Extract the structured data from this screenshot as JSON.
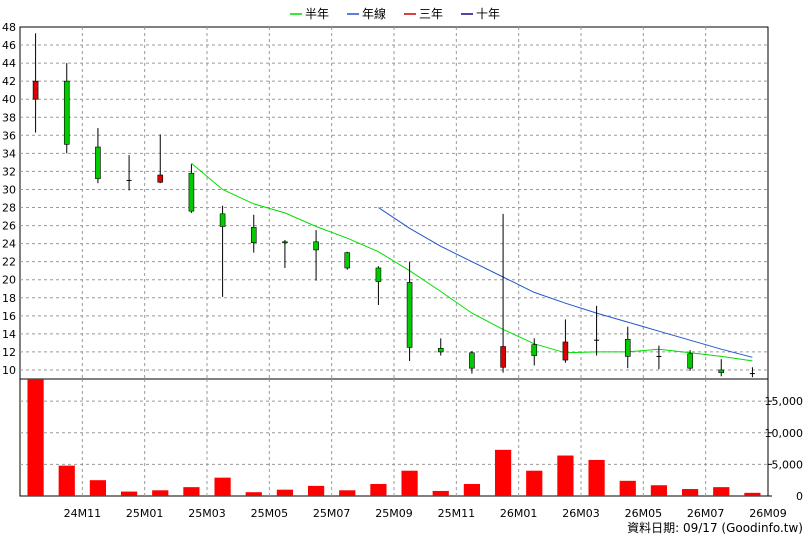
{
  "legend": [
    {
      "label": "半年",
      "color": "#00dd00"
    },
    {
      "label": "年線",
      "color": "#2255cc"
    },
    {
      "label": "三年",
      "color": "#cc0000"
    },
    {
      "label": "十年",
      "color": "#220088"
    }
  ],
  "source_label": "資料日期: 09/17 (Goodinfo.tw)",
  "colors": {
    "up_candle": "#dd0000",
    "down_candle": "#00cc00",
    "volume_bar": "#ff0000",
    "grid": "#9a9a9a"
  },
  "chart_data": [
    {
      "type": "candlestick",
      "title": "",
      "ylim": [
        9,
        48
      ],
      "yticks": [
        10,
        12,
        14,
        16,
        18,
        20,
        22,
        24,
        26,
        28,
        30,
        32,
        34,
        36,
        38,
        40,
        42,
        44,
        46,
        48
      ],
      "xtick_labels": [
        {
          "index": 1,
          "label": "24M11"
        },
        {
          "index": 3,
          "label": "25M01"
        },
        {
          "index": 5,
          "label": "25M03"
        },
        {
          "index": 7,
          "label": "25M05"
        },
        {
          "index": 9,
          "label": "25M07"
        },
        {
          "index": 11,
          "label": "25M09"
        },
        {
          "index": 13,
          "label": "25M11"
        },
        {
          "index": 15,
          "label": "26M01"
        },
        {
          "index": 17,
          "label": "26M03"
        },
        {
          "index": 19,
          "label": "26M05"
        },
        {
          "index": 21,
          "label": "26M07"
        },
        {
          "index": 23,
          "label": "26M09"
        }
      ],
      "candles": [
        {
          "open": 40.0,
          "high": 47.3,
          "low": 36.3,
          "close": 42.0
        },
        {
          "open": 42.0,
          "high": 44.0,
          "low": 34.0,
          "close": 35.0
        },
        {
          "open": 34.7,
          "high": 36.8,
          "low": 30.7,
          "close": 31.2
        },
        {
          "open": 31.0,
          "high": 33.8,
          "low": 29.9,
          "close": 31.0
        },
        {
          "open": 30.8,
          "high": 36.1,
          "low": 30.7,
          "close": 31.6
        },
        {
          "open": 31.8,
          "high": 32.8,
          "low": 27.4,
          "close": 27.6
        },
        {
          "open": 27.3,
          "high": 28.2,
          "low": 18.1,
          "close": 25.9
        },
        {
          "open": 25.8,
          "high": 27.2,
          "low": 23.0,
          "close": 24.1
        },
        {
          "open": 24.2,
          "high": 24.4,
          "low": 21.3,
          "close": 24.1
        },
        {
          "open": 24.2,
          "high": 25.5,
          "low": 19.9,
          "close": 23.3
        },
        {
          "open": 23.0,
          "high": 23.1,
          "low": 21.1,
          "close": 21.3
        },
        {
          "open": 21.3,
          "high": 21.5,
          "low": 17.2,
          "close": 19.8
        },
        {
          "open": 19.7,
          "high": 22.0,
          "low": 11.0,
          "close": 12.5
        },
        {
          "open": 12.4,
          "high": 13.5,
          "low": 11.6,
          "close": 12.0
        },
        {
          "open": 11.9,
          "high": 12.1,
          "low": 9.6,
          "close": 10.2
        },
        {
          "open": 10.3,
          "high": 27.3,
          "low": 9.7,
          "close": 12.6
        },
        {
          "open": 12.8,
          "high": 13.5,
          "low": 10.5,
          "close": 11.6
        },
        {
          "open": 11.1,
          "high": 15.6,
          "low": 10.8,
          "close": 13.1
        },
        {
          "open": 13.3,
          "high": 17.1,
          "low": 11.6,
          "close": 13.3
        },
        {
          "open": 13.4,
          "high": 14.8,
          "low": 10.2,
          "close": 11.5
        },
        {
          "open": 11.5,
          "high": 12.7,
          "low": 10.1,
          "close": 11.5
        },
        {
          "open": 11.8,
          "high": 12.2,
          "low": 9.9,
          "close": 10.2
        },
        {
          "open": 10.0,
          "high": 11.2,
          "low": 9.3,
          "close": 9.7
        },
        {
          "open": 9.6,
          "high": 10.3,
          "low": 9.2,
          "close": 9.6
        }
      ],
      "series": [
        {
          "name": "半年",
          "color": "#00dd00",
          "x": [
            5,
            6,
            7,
            8,
            9,
            10,
            11,
            12,
            13,
            14,
            15,
            16,
            17,
            18,
            19,
            20,
            21,
            22,
            23
          ],
          "values": [
            32.9,
            30.0,
            28.4,
            27.4,
            25.9,
            24.6,
            23.1,
            21.0,
            18.7,
            16.3,
            14.5,
            12.9,
            11.9,
            12.0,
            12.0,
            12.3,
            11.9,
            11.5,
            11.0
          ]
        },
        {
          "name": "年線",
          "color": "#2255cc",
          "x": [
            11,
            12,
            13,
            14,
            15,
            16,
            17,
            18,
            19,
            20,
            21,
            22,
            23
          ],
          "values": [
            28.0,
            25.7,
            23.7,
            22.0,
            20.3,
            18.6,
            17.4,
            16.3,
            15.3,
            14.3,
            13.3,
            12.3,
            11.4
          ]
        }
      ]
    },
    {
      "type": "bar",
      "title": "",
      "ylim": [
        0,
        18500
      ],
      "yticks": [
        0,
        5000,
        10000,
        15000
      ],
      "ytick_labels": [
        "0",
        "5,000",
        "10,000",
        "15,000"
      ],
      "values": [
        18600,
        4800,
        2500,
        700,
        900,
        1400,
        2900,
        600,
        1000,
        1600,
        900,
        1900,
        4000,
        800,
        1900,
        7300,
        4000,
        6400,
        5700,
        2400,
        1700,
        1100,
        1400,
        500
      ]
    }
  ]
}
